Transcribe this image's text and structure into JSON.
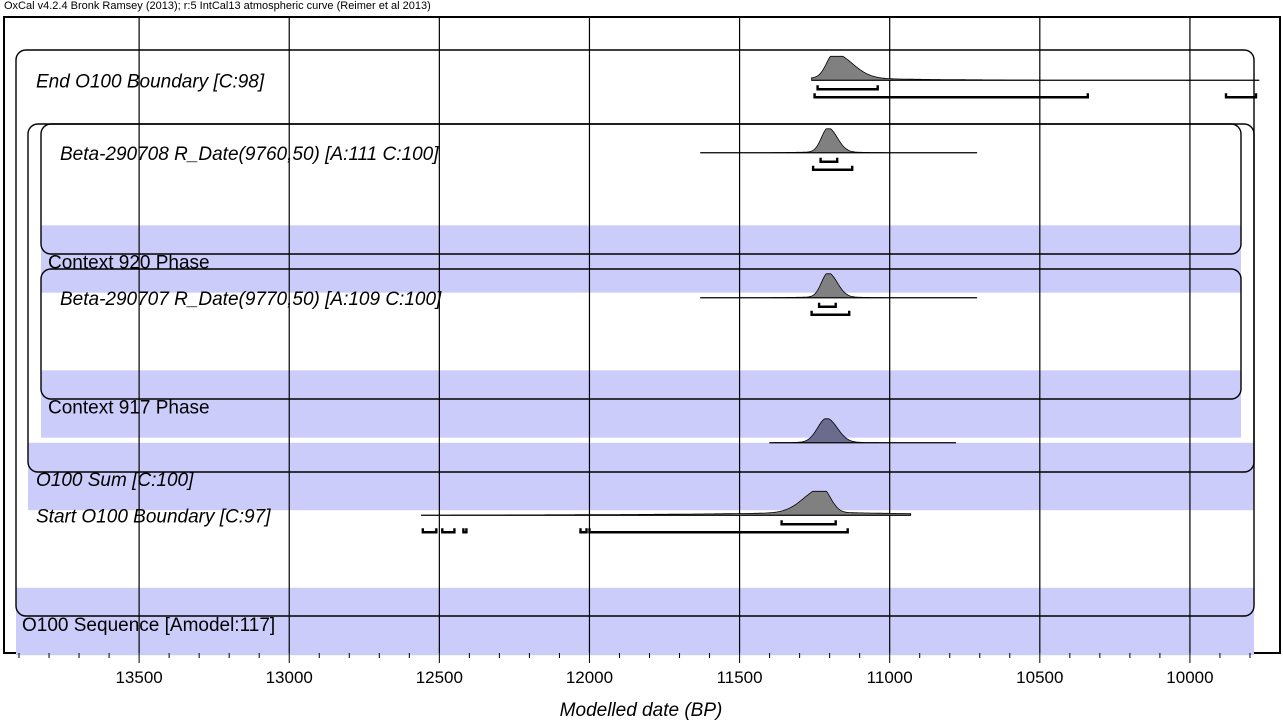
{
  "header": "OxCal v4.2.4 Bronk Ramsey (2013); r:5 IntCal13 atmospheric curve (Reimer et al 2013)",
  "colors": {
    "band": "#ccccfb",
    "dist_fill": "#808080",
    "sum_fill": "#6b6b8e"
  },
  "chart_data": {
    "type": "oxcal-multiplot",
    "xlabel": "Modelled date (BP)",
    "xlim": [
      13950,
      9700
    ],
    "xticks": [
      13500,
      13000,
      12500,
      12000,
      11500,
      11000,
      10500,
      10000
    ],
    "rows": [
      {
        "label": "End O100 Boundary [C:98]",
        "italic": true,
        "band": false,
        "indent": 0,
        "dist": {
          "fill": "gray",
          "range": [
            11260,
            9770
          ],
          "peak": 11185,
          "sigma_left": 25,
          "sigma_right": 60,
          "tail": 0.12,
          "tail_scale": 250
        },
        "ranges": [
          [
            [
              11240,
              11040
            ]
          ],
          [
            [
              11250,
              10340
            ],
            [
              9880,
              9780
            ]
          ]
        ]
      },
      {
        "label": "Beta-290708 R_Date(9760,50) [A:111 C:100]",
        "italic": true,
        "band": false,
        "indent": 2,
        "dist": {
          "fill": "gray",
          "range": [
            11630,
            10710
          ],
          "peak": 11205,
          "sigma_left": 22,
          "sigma_right": 30,
          "tail": 0.04,
          "tail_scale": 120
        },
        "ranges": [
          [
            [
              11230,
              11175
            ]
          ],
          [
            [
              11255,
              11125
            ]
          ]
        ]
      },
      {
        "label": "Context 920 Phase",
        "italic": false,
        "band": true,
        "indent": 2,
        "ranges": []
      },
      {
        "label": "Beta-290707 R_Date(9770,50) [A:109 C:100]",
        "italic": true,
        "band": false,
        "indent": 2,
        "dist": {
          "fill": "gray",
          "range": [
            11630,
            10710
          ],
          "peak": 11205,
          "sigma_left": 22,
          "sigma_right": 30,
          "tail": 0.04,
          "tail_scale": 120
        },
        "ranges": [
          [
            [
              11235,
              11180
            ]
          ],
          [
            [
              11260,
              11135
            ]
          ]
        ]
      },
      {
        "label": "Context 917 Phase",
        "italic": false,
        "band": true,
        "indent": 2,
        "ranges": []
      },
      {
        "label": "O100 Sum [C:100]",
        "italic": true,
        "band": true,
        "indent": 1,
        "dist": {
          "fill": "sum",
          "range": [
            11400,
            10780
          ],
          "peak": 11210,
          "sigma_left": 30,
          "sigma_right": 35,
          "tail": 0.02,
          "tail_scale": 200
        },
        "ranges": []
      },
      {
        "label": "Start O100 Boundary [C:97]",
        "italic": true,
        "band": false,
        "indent": 0,
        "dist": {
          "fill": "gray",
          "range": [
            12560,
            10930
          ],
          "peak": 11225,
          "sigma_left": 60,
          "sigma_right": 28,
          "tail": 0.13,
          "tail_scale": 450
        },
        "ranges": [
          [
            [
              11360,
              11180
            ]
          ],
          [
            [
              12555,
              12510
            ],
            [
              12490,
              12450
            ],
            [
              12420,
              12410
            ],
            [
              12030,
              12010
            ],
            [
              12000,
              11140
            ]
          ]
        ]
      },
      {
        "label": "O100 Sequence [Amodel:117]",
        "italic": false,
        "band": true,
        "indent": 0,
        "ranges": []
      }
    ]
  }
}
